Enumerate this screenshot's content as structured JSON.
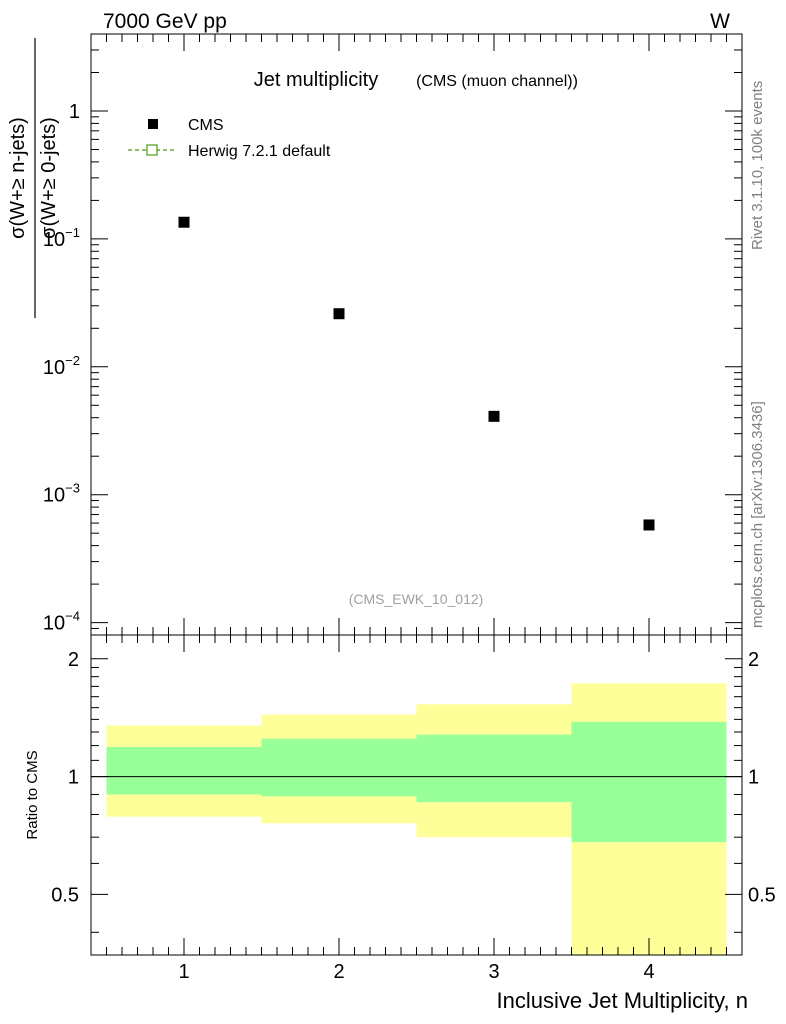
{
  "header": {
    "left": "7000 GeV pp",
    "right": "W"
  },
  "side_labels": {
    "rivet": "Rivet 3.1.10,  100k events",
    "mcplots": "mcplots.cern.ch [arXiv:1306.3436]"
  },
  "title": {
    "main": "Jet multiplicity",
    "sub": "(CMS (muon channel))"
  },
  "watermark": "(CMS_EWK_10_012)",
  "legend": [
    {
      "label": "CMS",
      "color": "#000000",
      "marker": "filled-square"
    },
    {
      "label": "Herwig 7.2.1 default",
      "color": "#4a9a1a",
      "marker": "open-square-dashed"
    }
  ],
  "chart_data": [
    {
      "type": "scatter",
      "panel": "main",
      "yscale": "log",
      "ylim": [
        8e-05,
        4
      ],
      "xlim": [
        0.4,
        4.6
      ],
      "ylabel_top": "σ(W+≥ n-jets)",
      "ylabel_bottom": "σ(W+≥ 0-jets)",
      "y_tick_labels": [
        {
          "value": 1,
          "base": "1",
          "exp": ""
        },
        {
          "value": 0.1,
          "base": "10",
          "exp": "−1"
        },
        {
          "value": 0.01,
          "base": "10",
          "exp": "−2"
        },
        {
          "value": 0.001,
          "base": "10",
          "exp": "−3"
        },
        {
          "value": 0.0001,
          "base": "10",
          "exp": "−4"
        }
      ],
      "series": [
        {
          "name": "CMS",
          "x": [
            1,
            2,
            3,
            4
          ],
          "y": [
            0.135,
            0.026,
            0.0041,
            0.00058
          ]
        }
      ]
    },
    {
      "type": "area",
      "panel": "ratio",
      "ylabel": "Ratio to CMS",
      "xlabel": "Inclusive Jet Multiplicity, n",
      "ylim": [
        0.35,
        2.3
      ],
      "xlim": [
        0.4,
        4.6
      ],
      "x_tick_labels": [
        "1",
        "2",
        "3",
        "4"
      ],
      "y_tick_labels": [
        "0.5",
        "1",
        "2"
      ],
      "reference_line": 1,
      "bins": [
        {
          "lo": 0.5,
          "hi": 1.5,
          "stat_lo": 0.9,
          "stat_hi": 1.19,
          "total_lo": 0.79,
          "total_hi": 1.35
        },
        {
          "lo": 1.5,
          "hi": 2.5,
          "stat_lo": 0.89,
          "stat_hi": 1.25,
          "total_lo": 0.76,
          "total_hi": 1.44
        },
        {
          "lo": 2.5,
          "hi": 3.5,
          "stat_lo": 0.86,
          "stat_hi": 1.28,
          "total_lo": 0.7,
          "total_hi": 1.53
        },
        {
          "lo": 3.5,
          "hi": 4.5,
          "stat_lo": 0.68,
          "stat_hi": 1.38,
          "total_lo": 0.35,
          "total_hi": 1.73
        }
      ],
      "colors": {
        "stat": "#99ff99",
        "total": "#ffff99"
      }
    }
  ]
}
